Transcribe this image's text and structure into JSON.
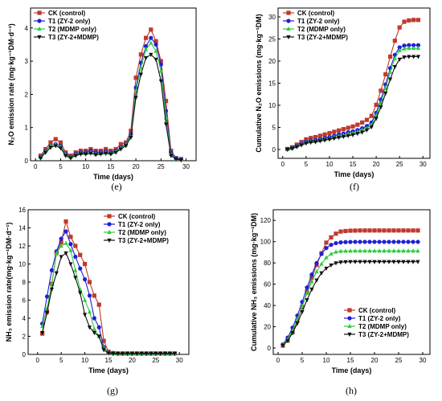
{
  "legend_names": [
    "CK (control)",
    "T1  (ZY-2 only)",
    "T2  (MDMP only)",
    "T3  (ZY-2+MDMP)"
  ],
  "colors": [
    "#c0392b",
    "#1f1fd6",
    "#2ecc40",
    "#111111"
  ],
  "markers": [
    "square",
    "circle",
    "triangle-up",
    "triangle-down"
  ],
  "chart_data": [
    {
      "id": "e",
      "type": "line",
      "panel_label": "(e)",
      "xlabel": "Time (days)",
      "ylabel": "N₂O emission rate (mg·kg⁻¹DM·d⁻¹)",
      "xlim": [
        -1,
        32
      ],
      "ylim": [
        0,
        4.6
      ],
      "xticks": [
        0,
        5,
        10,
        15,
        20,
        25,
        30
      ],
      "yticks": [
        0,
        1,
        2,
        3,
        4
      ],
      "legend_position": "top-left",
      "x": [
        1,
        2,
        3,
        4,
        5,
        6,
        7,
        8,
        9,
        10,
        11,
        12,
        13,
        14,
        15,
        16,
        17,
        18,
        19,
        20,
        21,
        22,
        23,
        24,
        25,
        26,
        27,
        28,
        29
      ],
      "series": [
        {
          "name": "CK (control)",
          "values": [
            0.15,
            0.35,
            0.55,
            0.65,
            0.55,
            0.25,
            0.15,
            0.25,
            0.3,
            0.3,
            0.35,
            0.3,
            0.3,
            0.35,
            0.3,
            0.35,
            0.5,
            0.55,
            0.9,
            2.5,
            3.2,
            3.7,
            3.95,
            3.6,
            3.0,
            1.8,
            0.3,
            0.08,
            0.05
          ]
        },
        {
          "name": "T1  (ZY-2 only)",
          "values": [
            0.12,
            0.3,
            0.45,
            0.5,
            0.45,
            0.2,
            0.12,
            0.2,
            0.25,
            0.25,
            0.3,
            0.25,
            0.25,
            0.28,
            0.25,
            0.3,
            0.4,
            0.5,
            0.8,
            2.2,
            2.95,
            3.45,
            3.7,
            3.5,
            2.9,
            1.5,
            0.25,
            0.07,
            0.05
          ]
        },
        {
          "name": "T2  (MDMP only)",
          "values": [
            0.1,
            0.28,
            0.45,
            0.5,
            0.42,
            0.18,
            0.1,
            0.18,
            0.22,
            0.22,
            0.25,
            0.2,
            0.22,
            0.25,
            0.22,
            0.28,
            0.38,
            0.48,
            0.75,
            2.1,
            2.8,
            3.35,
            3.55,
            3.3,
            2.7,
            1.3,
            0.2,
            0.05,
            0.03
          ]
        },
        {
          "name": "T3  (ZY-2+MDMP)",
          "values": [
            0.08,
            0.25,
            0.4,
            0.45,
            0.38,
            0.15,
            0.08,
            0.15,
            0.2,
            0.2,
            0.22,
            0.18,
            0.2,
            0.22,
            0.2,
            0.25,
            0.35,
            0.45,
            0.7,
            1.9,
            2.6,
            3.1,
            3.2,
            3.05,
            2.4,
            1.1,
            0.15,
            0.05,
            0.02
          ]
        }
      ]
    },
    {
      "id": "f",
      "type": "line",
      "panel_label": "(f)",
      "xlabel": "Time (days)",
      "ylabel": "Cumulative N₂O emissions (mg·kg⁻¹DM)",
      "xlim": [
        -1,
        31.5
      ],
      "ylim": [
        -2,
        32
      ],
      "xticks": [
        0,
        5,
        10,
        15,
        20,
        25,
        30
      ],
      "yticks": [
        0,
        5,
        10,
        15,
        20,
        25,
        30
      ],
      "legend_position": "top-left",
      "x": [
        1,
        2,
        3,
        4,
        5,
        6,
        7,
        8,
        9,
        10,
        11,
        12,
        13,
        14,
        15,
        16,
        17,
        18,
        19,
        20,
        21,
        22,
        23,
        24,
        25,
        26,
        27,
        28,
        29
      ],
      "series": [
        {
          "name": "CK (control)",
          "values": [
            0.1,
            0.5,
            1.1,
            1.7,
            2.3,
            2.6,
            2.8,
            3.1,
            3.4,
            3.7,
            4.0,
            4.3,
            4.6,
            4.9,
            5.2,
            5.6,
            6.1,
            6.7,
            7.6,
            10.1,
            13.3,
            17.0,
            21.0,
            24.6,
            27.6,
            28.9,
            29.2,
            29.3,
            29.3
          ]
        },
        {
          "name": "T1  (ZY-2 only)",
          "values": [
            0.1,
            0.4,
            0.8,
            1.3,
            1.8,
            2.0,
            2.1,
            2.3,
            2.6,
            2.8,
            3.1,
            3.4,
            3.6,
            3.9,
            4.1,
            4.4,
            4.8,
            5.3,
            6.1,
            8.3,
            11.3,
            14.7,
            18.4,
            21.4,
            23.1,
            23.5,
            23.6,
            23.6,
            23.6
          ]
        },
        {
          "name": "T2  (MDMP only)",
          "values": [
            0.05,
            0.3,
            0.7,
            1.2,
            1.6,
            1.8,
            1.9,
            2.1,
            2.3,
            2.5,
            2.8,
            3.0,
            3.2,
            3.5,
            3.7,
            4.0,
            4.4,
            4.8,
            5.6,
            7.7,
            10.5,
            13.9,
            17.5,
            20.6,
            22.4,
            22.8,
            22.9,
            22.9,
            22.9
          ]
        },
        {
          "name": "T3  (ZY-2+MDMP)",
          "values": [
            0.0,
            0.2,
            0.6,
            1.0,
            1.4,
            1.6,
            1.7,
            1.9,
            2.1,
            2.3,
            2.5,
            2.7,
            2.9,
            3.1,
            3.3,
            3.6,
            3.9,
            4.4,
            5.1,
            7.0,
            9.6,
            12.7,
            15.9,
            18.7,
            20.4,
            20.9,
            21.0,
            21.0,
            21.0
          ]
        }
      ]
    },
    {
      "id": "g",
      "type": "line",
      "panel_label": "(g)",
      "xlabel": "Time (days)",
      "ylabel": "NH₃ emission rate(mg·kg⁻¹DM·d⁻¹)",
      "xlim": [
        -2,
        32
      ],
      "ylim": [
        0,
        16
      ],
      "xticks": [
        0,
        5,
        10,
        15,
        20,
        25,
        30
      ],
      "yticks": [
        0,
        2,
        4,
        6,
        8,
        10,
        12,
        14,
        16
      ],
      "legend_position": "top-right",
      "x": [
        1,
        2,
        3,
        4,
        5,
        6,
        7,
        8,
        9,
        10,
        11,
        12,
        13,
        14,
        15,
        16,
        17,
        18,
        19,
        20,
        21,
        22,
        23,
        24,
        25,
        26,
        27,
        28,
        29
      ],
      "series": [
        {
          "name": "CK (control)",
          "values": [
            2.3,
            4.7,
            7.8,
            11.2,
            12.4,
            14.7,
            13.0,
            12.0,
            11.0,
            10.0,
            8.0,
            6.5,
            5.5,
            1.5,
            0.3,
            0.15,
            0.1,
            0.1,
            0.1,
            0.1,
            0.1,
            0.1,
            0.1,
            0.1,
            0.1,
            0.1,
            0.1,
            0.1,
            0.1
          ]
        },
        {
          "name": "T1  (ZY-2 only)",
          "values": [
            3.4,
            6.4,
            9.3,
            11.4,
            12.8,
            13.6,
            12.2,
            10.8,
            9.5,
            8.3,
            6.5,
            4.0,
            3.0,
            0.8,
            0.2,
            0.1,
            0.1,
            0.1,
            0.1,
            0.1,
            0.1,
            0.1,
            0.1,
            0.1,
            0.1,
            0.1,
            0.1,
            0.1,
            0.1
          ]
        },
        {
          "name": "T2  (MDMP only)",
          "values": [
            3.1,
            5.1,
            7.8,
            11.2,
            12.0,
            12.3,
            11.5,
            9.3,
            7.2,
            6.0,
            4.7,
            2.8,
            2.0,
            0.7,
            0.2,
            0.1,
            0.1,
            0.1,
            0.1,
            0.1,
            0.1,
            0.1,
            0.1,
            0.1,
            0.1,
            0.1,
            0.1,
            0.1,
            0.1
          ]
        },
        {
          "name": "T3  (ZY-2+MDMP)",
          "values": [
            2.4,
            4.6,
            7.2,
            9.0,
            10.8,
            11.2,
            10.0,
            8.5,
            6.8,
            4.4,
            3.0,
            2.4,
            2.0,
            0.5,
            0.15,
            0.1,
            0.1,
            0.1,
            0.1,
            0.1,
            0.1,
            0.1,
            0.1,
            0.1,
            0.1,
            0.1,
            0.1,
            0.1,
            0.1
          ]
        }
      ]
    },
    {
      "id": "h",
      "type": "line",
      "panel_label": "(h)",
      "xlabel": "Time (days)",
      "ylabel": "Cumulative NH₃ emissions (mg·kg⁻¹DM)",
      "xlim": [
        -1,
        31.5
      ],
      "ylim": [
        -6,
        130
      ],
      "xticks": [
        0,
        5,
        10,
        15,
        20,
        25,
        30
      ],
      "yticks": [
        0,
        20,
        40,
        60,
        80,
        100,
        120
      ],
      "legend_position": "bottom-right",
      "x": [
        1,
        2,
        3,
        4,
        5,
        6,
        7,
        8,
        9,
        10,
        11,
        12,
        13,
        14,
        15,
        16,
        17,
        18,
        19,
        20,
        21,
        22,
        23,
        24,
        25,
        26,
        27,
        28,
        29
      ],
      "series": [
        {
          "name": "CK (control)",
          "values": [
            2.3,
            7.0,
            14.8,
            26.0,
            38.4,
            53.1,
            66.1,
            78.1,
            89.1,
            99.1,
            104.0,
            107.5,
            109.5,
            110.0,
            110.3,
            110.4,
            110.5,
            110.5,
            110.5,
            110.5,
            110.5,
            110.5,
            110.5,
            110.5,
            110.5,
            110.5,
            110.5,
            110.5,
            110.5
          ]
        },
        {
          "name": "T1  (ZY-2 only)",
          "values": [
            3.4,
            9.8,
            19.1,
            30.5,
            43.3,
            56.9,
            69.1,
            79.9,
            88.4,
            94.0,
            97.0,
            98.6,
            99.3,
            99.6,
            99.7,
            99.8,
            99.8,
            99.8,
            99.8,
            99.8,
            99.8,
            99.8,
            99.8,
            99.8,
            99.8,
            99.8,
            99.8,
            99.8,
            99.8
          ]
        },
        {
          "name": "T2  (MDMP only)",
          "values": [
            3.1,
            8.2,
            16.0,
            27.2,
            39.2,
            51.5,
            62.5,
            71.8,
            79.0,
            85.0,
            88.5,
            90.3,
            91.0,
            91.2,
            91.3,
            91.3,
            91.3,
            91.3,
            91.3,
            91.3,
            91.3,
            91.3,
            91.3,
            91.3,
            91.3,
            91.3,
            91.3,
            91.3,
            91.3
          ]
        },
        {
          "name": "T3  (ZY-2+MDMP)",
          "values": [
            2.4,
            7.0,
            14.2,
            23.2,
            34.0,
            45.2,
            55.2,
            63.7,
            70.5,
            74.9,
            77.9,
            79.9,
            80.7,
            81.0,
            81.1,
            81.1,
            81.1,
            81.1,
            81.1,
            81.1,
            81.1,
            81.1,
            81.1,
            81.1,
            81.1,
            81.1,
            81.1,
            81.1,
            81.1
          ]
        }
      ]
    }
  ]
}
